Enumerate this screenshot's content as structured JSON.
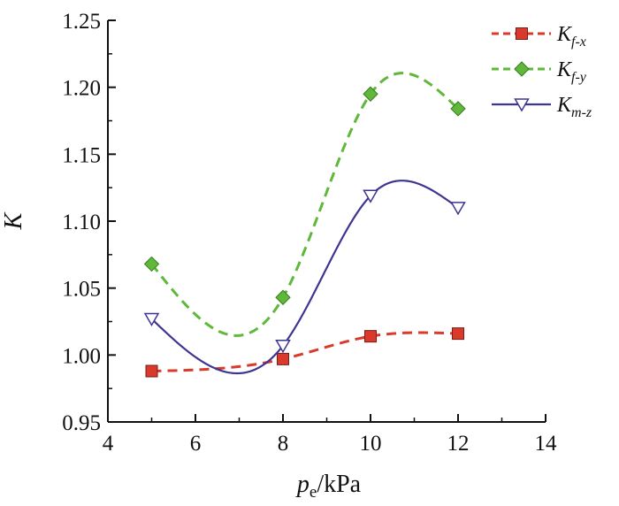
{
  "chart_data": {
    "type": "line",
    "title": "",
    "xlabel": "p",
    "xlabel_sub": "e",
    "xlabel_unit": "/kPa",
    "ylabel": "K",
    "xlim": [
      4,
      14
    ],
    "ylim": [
      0.95,
      1.25
    ],
    "xticks": [
      4,
      6,
      8,
      10,
      12,
      14
    ],
    "yticks": [
      0.95,
      1.0,
      1.05,
      1.1,
      1.15,
      1.2,
      1.25
    ],
    "xtick_labels": [
      "4",
      "6",
      "8",
      "10",
      "12",
      "14"
    ],
    "ytick_labels": [
      "0.95",
      "1.00",
      "1.05",
      "1.10",
      "1.15",
      "1.20",
      "1.25"
    ],
    "legend_position": "top-right",
    "series": [
      {
        "name": "K",
        "sub": "f-x",
        "color": "#d93a2b",
        "marker": "square",
        "line_style": "dashed",
        "x": [
          5,
          8,
          10,
          12
        ],
        "values": [
          0.988,
          0.997,
          1.014,
          1.016
        ]
      },
      {
        "name": "K",
        "sub": "f-y",
        "color": "#5fb83a",
        "marker": "diamond",
        "line_style": "dashed",
        "x": [
          5,
          8,
          10,
          12
        ],
        "values": [
          1.068,
          1.043,
          1.195,
          1.184
        ]
      },
      {
        "name": "K",
        "sub": "m-z",
        "color": "#3d3592",
        "marker": "triangle-down-open",
        "line_style": "solid",
        "x": [
          5,
          8,
          10,
          12
        ],
        "values": [
          1.027,
          1.007,
          1.119,
          1.11
        ]
      }
    ]
  }
}
